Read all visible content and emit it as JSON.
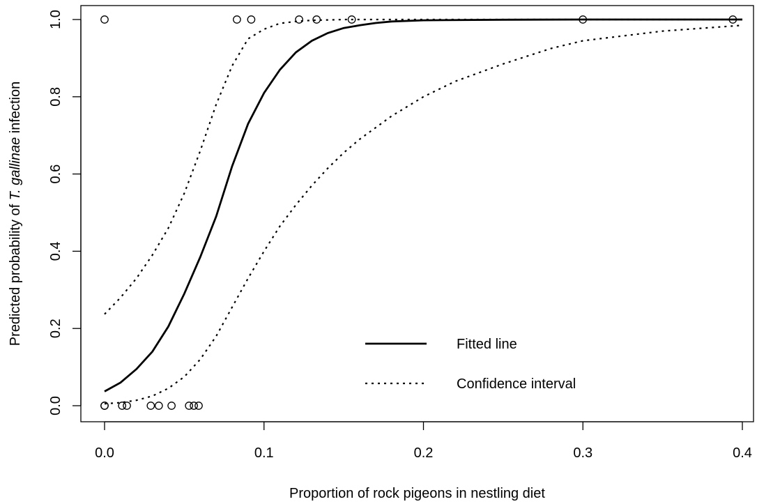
{
  "chart_data": {
    "type": "line",
    "title": "",
    "xlabel": "Proportion of rock pigeons in nestling diet",
    "ylabel": {
      "prefix": "Predicted probability of ",
      "italic": "T. gallinae",
      "suffix": " infection"
    },
    "xlim": [
      0,
      0.4
    ],
    "ylim": [
      0,
      1
    ],
    "xticks": [
      0.0,
      0.1,
      0.2,
      0.3,
      0.4
    ],
    "xtick_labels": [
      "0.0",
      "0.1",
      "0.2",
      "0.3",
      "0.4"
    ],
    "yticks": [
      0.0,
      0.2,
      0.4,
      0.6,
      0.8,
      1.0
    ],
    "ytick_labels": [
      "0.0",
      "0.2",
      "0.4",
      "0.6",
      "0.8",
      "1.0"
    ],
    "grid": false,
    "legend": {
      "placement": "bottom-right",
      "entries": [
        {
          "label": "Fitted line",
          "style": "solid"
        },
        {
          "label": "Confidence interval",
          "style": "dotted"
        }
      ]
    },
    "series": [
      {
        "name": "Fitted line",
        "style": "solid",
        "x": [
          0,
          0.01,
          0.02,
          0.03,
          0.04,
          0.05,
          0.06,
          0.07,
          0.08,
          0.09,
          0.1,
          0.11,
          0.12,
          0.13,
          0.14,
          0.15,
          0.16,
          0.17,
          0.18,
          0.2,
          0.25,
          0.3,
          0.35,
          0.4
        ],
        "y": [
          0.037,
          0.06,
          0.095,
          0.14,
          0.205,
          0.29,
          0.385,
          0.49,
          0.62,
          0.73,
          0.81,
          0.87,
          0.915,
          0.945,
          0.965,
          0.978,
          0.985,
          0.991,
          0.995,
          0.998,
          0.9995,
          1.0,
          1.0,
          1.0
        ]
      },
      {
        "name": "Confidence interval",
        "style": "dotted",
        "x": [
          0,
          0.01,
          0.02,
          0.03,
          0.04,
          0.05,
          0.06,
          0.07,
          0.08,
          0.09,
          0.1,
          0.11,
          0.12,
          0.13,
          0.14,
          0.15,
          0.16,
          0.17,
          0.18,
          0.2,
          0.25,
          0.3,
          0.35,
          0.4
        ],
        "y": [
          0.237,
          0.28,
          0.33,
          0.39,
          0.46,
          0.55,
          0.66,
          0.78,
          0.88,
          0.95,
          0.975,
          0.99,
          0.995,
          0.998,
          0.999,
          1.0,
          1.0,
          1.0,
          1.0,
          1.0,
          1.0,
          1.0,
          1.0,
          1.0
        ]
      },
      {
        "name": "Confidence interval",
        "style": "dotted",
        "x": [
          0,
          0.01,
          0.02,
          0.03,
          0.04,
          0.05,
          0.06,
          0.07,
          0.08,
          0.09,
          0.1,
          0.11,
          0.12,
          0.13,
          0.14,
          0.15,
          0.16,
          0.17,
          0.18,
          0.2,
          0.22,
          0.25,
          0.28,
          0.3,
          0.35,
          0.4
        ],
        "y": [
          0.005,
          0.008,
          0.014,
          0.025,
          0.045,
          0.075,
          0.12,
          0.18,
          0.255,
          0.33,
          0.4,
          0.465,
          0.52,
          0.57,
          0.615,
          0.655,
          0.69,
          0.72,
          0.75,
          0.8,
          0.84,
          0.885,
          0.925,
          0.945,
          0.97,
          0.985
        ]
      }
    ],
    "observations": {
      "x": [
        0.0,
        0.083,
        0.092,
        0.122,
        0.133,
        0.155,
        0.3,
        0.394,
        0.0,
        0.0,
        0.011,
        0.014,
        0.029,
        0.034,
        0.042,
        0.053,
        0.056,
        0.059
      ],
      "y": [
        1,
        1,
        1,
        1,
        1,
        1,
        1,
        1,
        0,
        0,
        0,
        0,
        0,
        0,
        0,
        0,
        0,
        0
      ]
    }
  }
}
